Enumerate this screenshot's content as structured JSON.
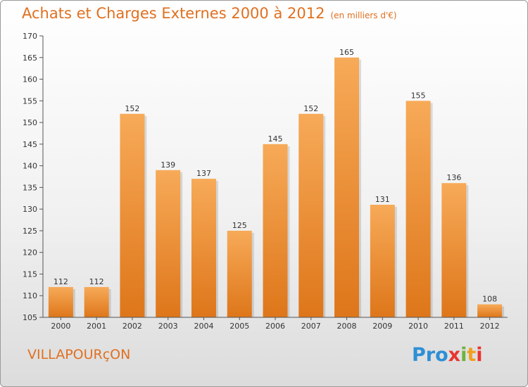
{
  "header": {
    "title": "Achats et Charges Externes 2000 à 2012",
    "unit": "(en milliers d'€)"
  },
  "footer": {
    "city": "VILLAPOURçON",
    "logo": [
      "Pro",
      "x",
      "i",
      "t",
      "i"
    ]
  },
  "colors": {
    "title": "#e07020",
    "bar_light": "#f6a552",
    "bar_dark": "#e07a1e",
    "axis": "#555555"
  },
  "chart_data": {
    "type": "bar",
    "title": "Achats et Charges Externes 2000 à 2012",
    "subtitle": "(en milliers d'€)",
    "xlabel": "",
    "ylabel": "",
    "categories": [
      "2000",
      "2001",
      "2002",
      "2003",
      "2004",
      "2005",
      "2006",
      "2007",
      "2008",
      "2009",
      "2010",
      "2011",
      "2012"
    ],
    "values": [
      112,
      112,
      152,
      139,
      137,
      125,
      145,
      152,
      165,
      131,
      155,
      136,
      108
    ],
    "ylim": [
      105,
      170
    ],
    "yticks": [
      105,
      110,
      115,
      120,
      125,
      130,
      135,
      140,
      145,
      150,
      155,
      160,
      165,
      170
    ],
    "grid": false,
    "legend": "none"
  }
}
